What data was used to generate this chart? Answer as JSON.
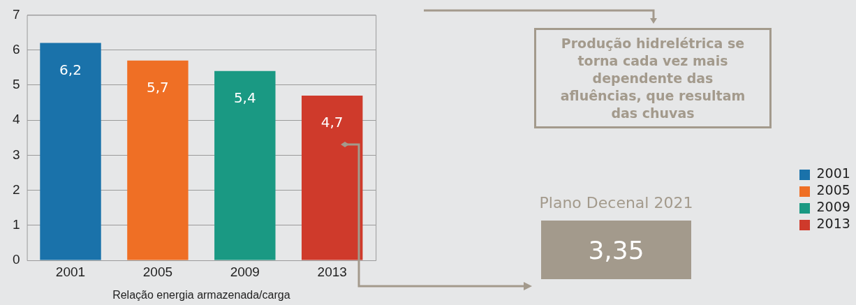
{
  "chart_data": {
    "type": "bar",
    "xlabel": "Relação energia armazenada/carga",
    "categories": [
      "2001",
      "2005",
      "2009",
      "2013"
    ],
    "series": [
      {
        "name": "2001",
        "color": "#1a72aa",
        "values": [
          6.2,
          null,
          null,
          null
        ],
        "value_labels": [
          "6,2",
          null,
          null,
          null
        ]
      },
      {
        "name": "2005",
        "color": "#ef6f25",
        "values": [
          null,
          5.7,
          null,
          null
        ],
        "value_labels": [
          null,
          "5,7",
          null,
          null
        ]
      },
      {
        "name": "2009",
        "color": "#1a9983",
        "values": [
          null,
          null,
          5.4,
          null
        ],
        "value_labels": [
          null,
          null,
          "5,4",
          null
        ]
      },
      {
        "name": "2013",
        "color": "#cf3a2b",
        "values": [
          null,
          null,
          null,
          4.7
        ],
        "value_labels": [
          null,
          null,
          null,
          "4,7"
        ]
      }
    ],
    "ylim": [
      0,
      7
    ],
    "yticks": [
      0,
      1,
      2,
      3,
      4,
      5,
      6,
      7
    ],
    "grid": "y",
    "legend": "right",
    "annotations": [
      "Produção hidrelétrica se torna cada vez mais dependente das afluências, que resultam das chuvas",
      "Plano Decenal 2021",
      "3,35"
    ]
  }
}
